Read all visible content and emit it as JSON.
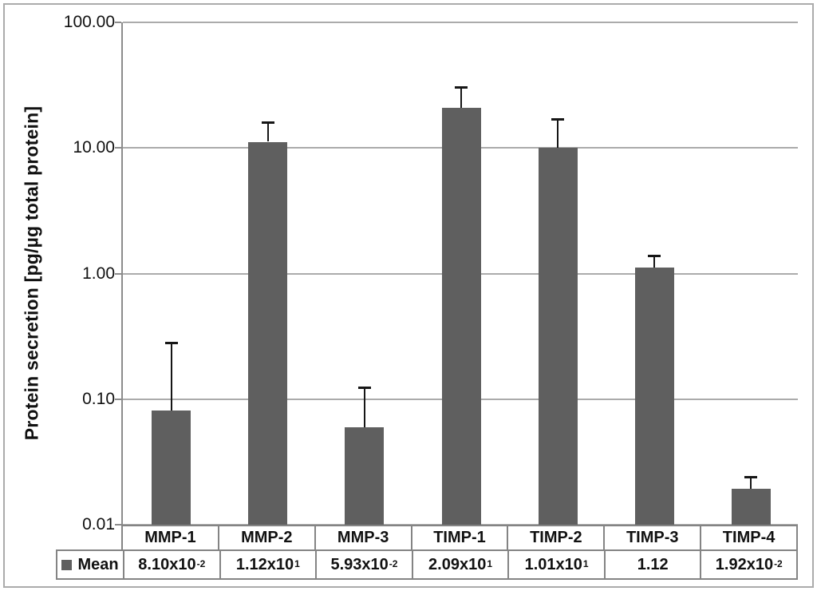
{
  "chart_data": {
    "type": "bar",
    "title": "",
    "xlabel": "",
    "ylabel": "Protein secretion [pg/µg total protein]",
    "series_name": "Mean",
    "categories": [
      "MMP-1",
      "MMP-2",
      "MMP-3",
      "TIMP-1",
      "TIMP-2",
      "TIMP-3",
      "TIMP-4"
    ],
    "values": [
      0.081,
      11.2,
      0.0593,
      20.9,
      10.1,
      1.12,
      0.0192
    ],
    "error_upper": [
      0.28,
      16,
      0.125,
      30.5,
      17,
      1.4,
      0.024
    ],
    "value_labels": [
      "8.10x10^-2",
      "1.12x10^1",
      "5.93x10^-2",
      "2.09x10^1",
      "1.01x10^1",
      "1.12",
      "1.92x10^-2"
    ],
    "y_scale": "log",
    "ylim": [
      0.01,
      100
    ],
    "y_ticks": [
      "100.00",
      "10.00",
      "1.00",
      "0.10",
      "0.01"
    ],
    "grid": true,
    "legend_position": "bottom-table-left",
    "colors": {
      "bar": "#5f5f5f",
      "gridline": "#ababab",
      "axis": "#8c8c8c",
      "error_bar": "#161616",
      "table_border": "#848484"
    }
  }
}
